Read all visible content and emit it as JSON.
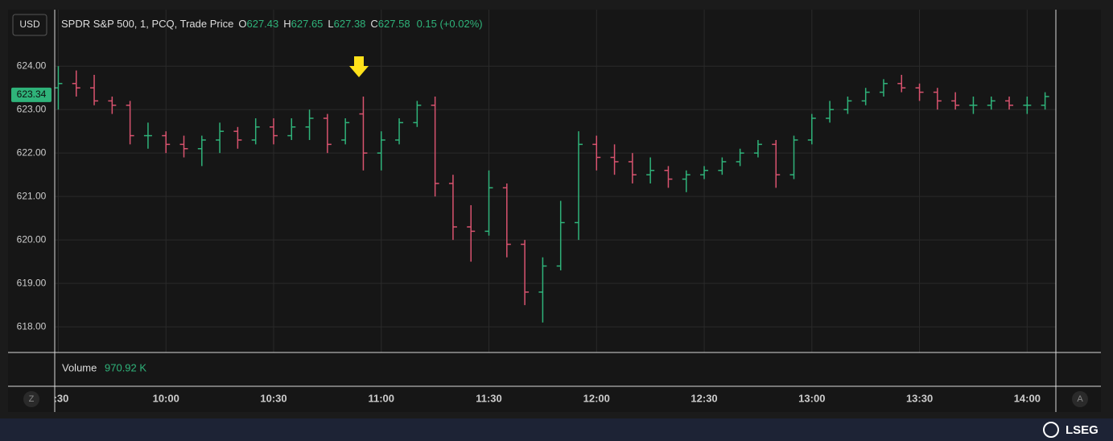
{
  "header": {
    "currency": "USD",
    "instrument": "SPDR S&P 500, 1, PCQ, Trade Price",
    "o_label": "O",
    "o_value": "627.43",
    "h_label": "H",
    "h_value": "627.65",
    "l_label": "L",
    "l_value": "627.38",
    "c_label": "C",
    "c_value": "627.58",
    "change": "0.15 (+0.02%)",
    "volume_label": "Volume",
    "volume_value": "970.92 K",
    "left_button": "Z",
    "right_button": "A",
    "brand": "LSEG"
  },
  "chart_data": {
    "type": "ohlc",
    "up_color": "#2fb37a",
    "down_color": "#d9536f",
    "grid": true,
    "last_price": 623.34,
    "x": [
      570,
      575,
      580,
      585,
      590,
      595,
      600,
      605,
      610,
      615,
      620,
      625,
      630,
      635,
      640,
      645,
      650,
      655,
      660,
      665,
      670,
      675,
      680,
      685,
      690,
      695,
      700,
      705,
      710,
      715,
      720,
      725,
      730,
      735,
      740,
      745,
      750,
      755,
      760,
      765,
      770,
      775,
      780,
      785,
      790,
      795,
      800,
      805,
      810,
      815,
      820,
      825,
      830,
      835,
      840,
      845
    ],
    "open": [
      623.5,
      623.6,
      623.5,
      623.2,
      623.1,
      622.4,
      622.4,
      622.2,
      622.1,
      622.3,
      622.5,
      622.3,
      622.6,
      622.4,
      622.6,
      622.8,
      622.3,
      622.9,
      622.0,
      622.3,
      622.7,
      623.1,
      621.3,
      620.3,
      620.2,
      621.2,
      619.9,
      618.8,
      619.4,
      620.4,
      622.2,
      621.9,
      621.8,
      621.5,
      621.6,
      621.4,
      621.5,
      621.6,
      621.8,
      622.0,
      622.2,
      621.5,
      622.3,
      622.8,
      623.0,
      623.2,
      623.4,
      623.6,
      623.5,
      623.4,
      623.2,
      623.1,
      623.1,
      623.2,
      623.1,
      623.1
    ],
    "high": [
      624.0,
      623.9,
      623.8,
      623.3,
      623.2,
      622.7,
      622.5,
      622.4,
      622.4,
      622.7,
      622.6,
      622.8,
      622.8,
      622.8,
      623.0,
      622.9,
      622.8,
      623.3,
      622.5,
      622.8,
      623.2,
      623.3,
      621.5,
      620.8,
      621.6,
      621.3,
      620.0,
      619.6,
      620.9,
      622.5,
      622.4,
      622.2,
      622.0,
      621.9,
      621.7,
      621.6,
      621.7,
      621.9,
      622.1,
      622.3,
      622.3,
      622.4,
      622.9,
      623.2,
      623.3,
      623.5,
      623.7,
      623.8,
      623.6,
      623.5,
      623.4,
      623.3,
      623.3,
      623.3,
      623.3,
      623.4
    ],
    "low": [
      623.0,
      623.3,
      623.1,
      622.9,
      622.2,
      622.1,
      622.0,
      621.9,
      621.7,
      622.0,
      622.1,
      622.2,
      622.2,
      622.3,
      622.3,
      622.0,
      622.2,
      621.6,
      621.6,
      622.2,
      622.6,
      621.0,
      620.0,
      619.5,
      620.1,
      619.6,
      618.5,
      618.1,
      619.3,
      620.0,
      621.6,
      621.5,
      621.3,
      621.3,
      621.2,
      621.1,
      621.4,
      621.5,
      621.7,
      621.9,
      621.2,
      621.4,
      622.2,
      622.7,
      622.9,
      623.1,
      623.3,
      623.4,
      623.2,
      623.0,
      623.0,
      622.9,
      623.0,
      623.0,
      622.9,
      623.0
    ],
    "close": [
      623.6,
      623.5,
      623.2,
      623.1,
      622.4,
      622.4,
      622.2,
      622.1,
      622.3,
      622.5,
      622.3,
      622.6,
      622.4,
      622.6,
      622.8,
      622.2,
      622.7,
      622.0,
      622.3,
      622.7,
      623.1,
      621.3,
      620.3,
      620.2,
      621.2,
      619.9,
      618.8,
      619.4,
      620.4,
      622.2,
      621.9,
      621.8,
      621.5,
      621.6,
      621.4,
      621.5,
      621.6,
      621.8,
      622.0,
      622.2,
      621.5,
      622.3,
      622.8,
      623.0,
      623.2,
      623.4,
      623.6,
      623.5,
      623.4,
      623.2,
      623.1,
      623.1,
      623.2,
      623.1,
      623.1,
      623.3
    ],
    "xlim": [
      569,
      848
    ],
    "xticks": [
      {
        "value": 570,
        "label": ":30"
      },
      {
        "value": 600,
        "label": "10:00"
      },
      {
        "value": 630,
        "label": "10:30"
      },
      {
        "value": 660,
        "label": "11:00"
      },
      {
        "value": 690,
        "label": "11:30"
      },
      {
        "value": 720,
        "label": "12:00"
      },
      {
        "value": 750,
        "label": "12:30"
      },
      {
        "value": 780,
        "label": "13:00"
      },
      {
        "value": 810,
        "label": "13:30"
      },
      {
        "value": 840,
        "label": "14:00"
      }
    ],
    "ylim": [
      617.41,
      625.3
    ],
    "yticks": [
      {
        "value": 618,
        "label": "618.00"
      },
      {
        "value": 619,
        "label": "619.00"
      },
      {
        "value": 620,
        "label": "620.00"
      },
      {
        "value": 621,
        "label": "621.00"
      },
      {
        "value": 622,
        "label": "622.00"
      },
      {
        "value": 623,
        "label": "623.00"
      },
      {
        "value": 624,
        "label": "624.00"
      }
    ]
  }
}
